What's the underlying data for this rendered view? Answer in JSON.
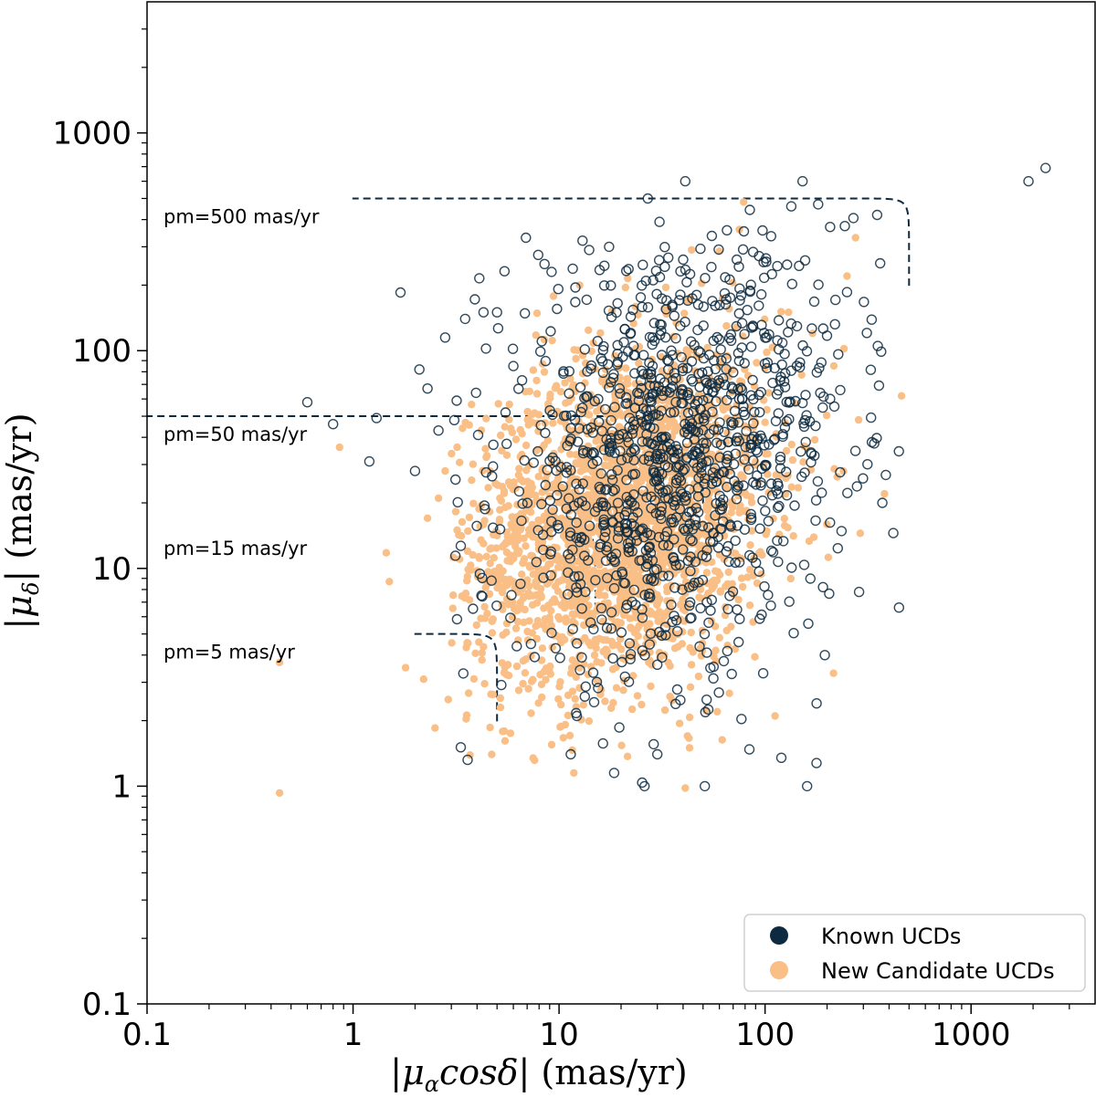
{
  "chart_data": {
    "type": "scatter",
    "title": "",
    "xlabel": "|μαcosδ| (mas/yr)",
    "xlabel_parts": [
      "|",
      "μ",
      "α",
      "cosδ",
      "| (mas/yr)"
    ],
    "ylabel": "|μδ| (mas/yr)",
    "ylabel_parts": [
      "|",
      "μ",
      "δ",
      "| (mas/yr)"
    ],
    "xscale": "log",
    "yscale": "log",
    "xlim": [
      0.1,
      4000
    ],
    "ylim": [
      0.1,
      4000
    ],
    "xticks": [
      {
        "value": 0.1,
        "label": "0.1"
      },
      {
        "value": 1,
        "label": "1"
      },
      {
        "value": 10,
        "label": "10"
      },
      {
        "value": 100,
        "label": "100"
      },
      {
        "value": 1000,
        "label": "1000"
      }
    ],
    "yticks": [
      {
        "value": 0.1,
        "label": "0.1"
      },
      {
        "value": 1,
        "label": "1"
      },
      {
        "value": 10,
        "label": "10"
      },
      {
        "value": 100,
        "label": "100"
      },
      {
        "value": 1000,
        "label": "1000"
      }
    ],
    "grid": false,
    "legend_position": "bottom-right",
    "series": [
      {
        "name": "Known UCDs",
        "marker": "hollow-circle",
        "color": "#0d2a40",
        "points": [
          [
            0.6,
            58
          ],
          [
            0.8,
            46
          ],
          [
            1.2,
            31
          ],
          [
            1.3,
            49
          ],
          [
            1.7,
            185
          ],
          [
            2.0,
            28
          ],
          [
            2.1,
            82
          ],
          [
            2.3,
            67
          ],
          [
            2.6,
            43
          ],
          [
            2.8,
            115
          ],
          [
            3.1,
            48
          ],
          [
            3.5,
            140
          ],
          [
            3.9,
            172
          ],
          [
            4.1,
            215
          ],
          [
            4.3,
            150
          ],
          [
            5.0,
            150
          ],
          [
            6.0,
            85
          ],
          [
            6.9,
            330
          ],
          [
            5.5,
            52
          ],
          [
            4.8,
            37
          ],
          [
            6.5,
            8.5
          ],
          [
            4.2,
            7.5
          ],
          [
            7.3,
            4.5
          ],
          [
            12.2,
            2.1
          ],
          [
            11.4,
            1.4
          ],
          [
            18.5,
            1.15
          ],
          [
            41,
            600
          ],
          [
            26,
            1.0
          ],
          [
            30,
            1.4
          ],
          [
            51,
            1.0
          ],
          [
            120,
            1.35
          ],
          [
            160,
            1.0
          ],
          [
            152,
            600
          ],
          [
            181,
            470
          ],
          [
            207,
            370
          ],
          [
            178,
            2.4
          ],
          [
            195,
            4.0
          ],
          [
            286,
            7.8
          ],
          [
            350,
            420
          ],
          [
            362,
            252
          ],
          [
            330,
            38
          ],
          [
            371,
            20
          ],
          [
            2300,
            690
          ],
          [
            1900,
            600
          ],
          [
            13,
            320
          ],
          [
            14,
            290
          ],
          [
            8.5,
            250
          ],
          [
            9.2,
            230
          ],
          [
            17.5,
            300
          ],
          [
            12,
            195
          ]
        ],
        "cluster": {
          "center": [
            36,
            32
          ],
          "spread_dex": [
            0.42,
            0.46
          ],
          "count": 1120
        }
      },
      {
        "name": "New Candidate UCDs",
        "marker": "filled-circle",
        "color": "#f9bf86",
        "points": [
          [
            0.44,
            0.93
          ],
          [
            0.44,
            3.7
          ],
          [
            0.86,
            36
          ],
          [
            1.45,
            11.8
          ],
          [
            1.5,
            8.7
          ],
          [
            1.8,
            3.5
          ],
          [
            2.2,
            3.1
          ],
          [
            2.5,
            1.85
          ],
          [
            2.9,
            2.5
          ],
          [
            11.8,
            1.15
          ],
          [
            41,
            0.98
          ],
          [
            42,
            1.7
          ],
          [
            43,
            1.5
          ],
          [
            5.2,
            2.3
          ],
          [
            7.1,
            2.8
          ],
          [
            275,
            330
          ],
          [
            250,
            220
          ],
          [
            460,
            62
          ],
          [
            380,
            22
          ],
          [
            290,
            14.5
          ],
          [
            215,
            3.3
          ],
          [
            9.4,
            178
          ],
          [
            12.6,
            200
          ],
          [
            44,
            290
          ],
          [
            21,
            195
          ],
          [
            75,
            360
          ],
          [
            130,
            150
          ],
          [
            170,
            120
          ],
          [
            3.2,
            36
          ],
          [
            3.4,
            44
          ],
          [
            2.6,
            21
          ],
          [
            2.8,
            28
          ],
          [
            3.6,
            12
          ],
          [
            2.3,
            17
          ],
          [
            3.2,
            15
          ]
        ],
        "cluster": {
          "center": [
            20,
            17
          ],
          "spread_dex": [
            0.36,
            0.38
          ],
          "count": 2300
        }
      }
    ],
    "reference_curves": [
      {
        "pm": 500,
        "label": "pm=500 mas/yr",
        "style": "dashed"
      },
      {
        "pm": 50,
        "label": "pm=50 mas/yr",
        "style": "dashed"
      },
      {
        "pm": 15,
        "label": "pm=15 mas/yr",
        "style": "dotted"
      },
      {
        "pm": 5,
        "label": "pm=5 mas/yr",
        "style": "dashed"
      }
    ],
    "curve_color": "#0d2a40"
  }
}
